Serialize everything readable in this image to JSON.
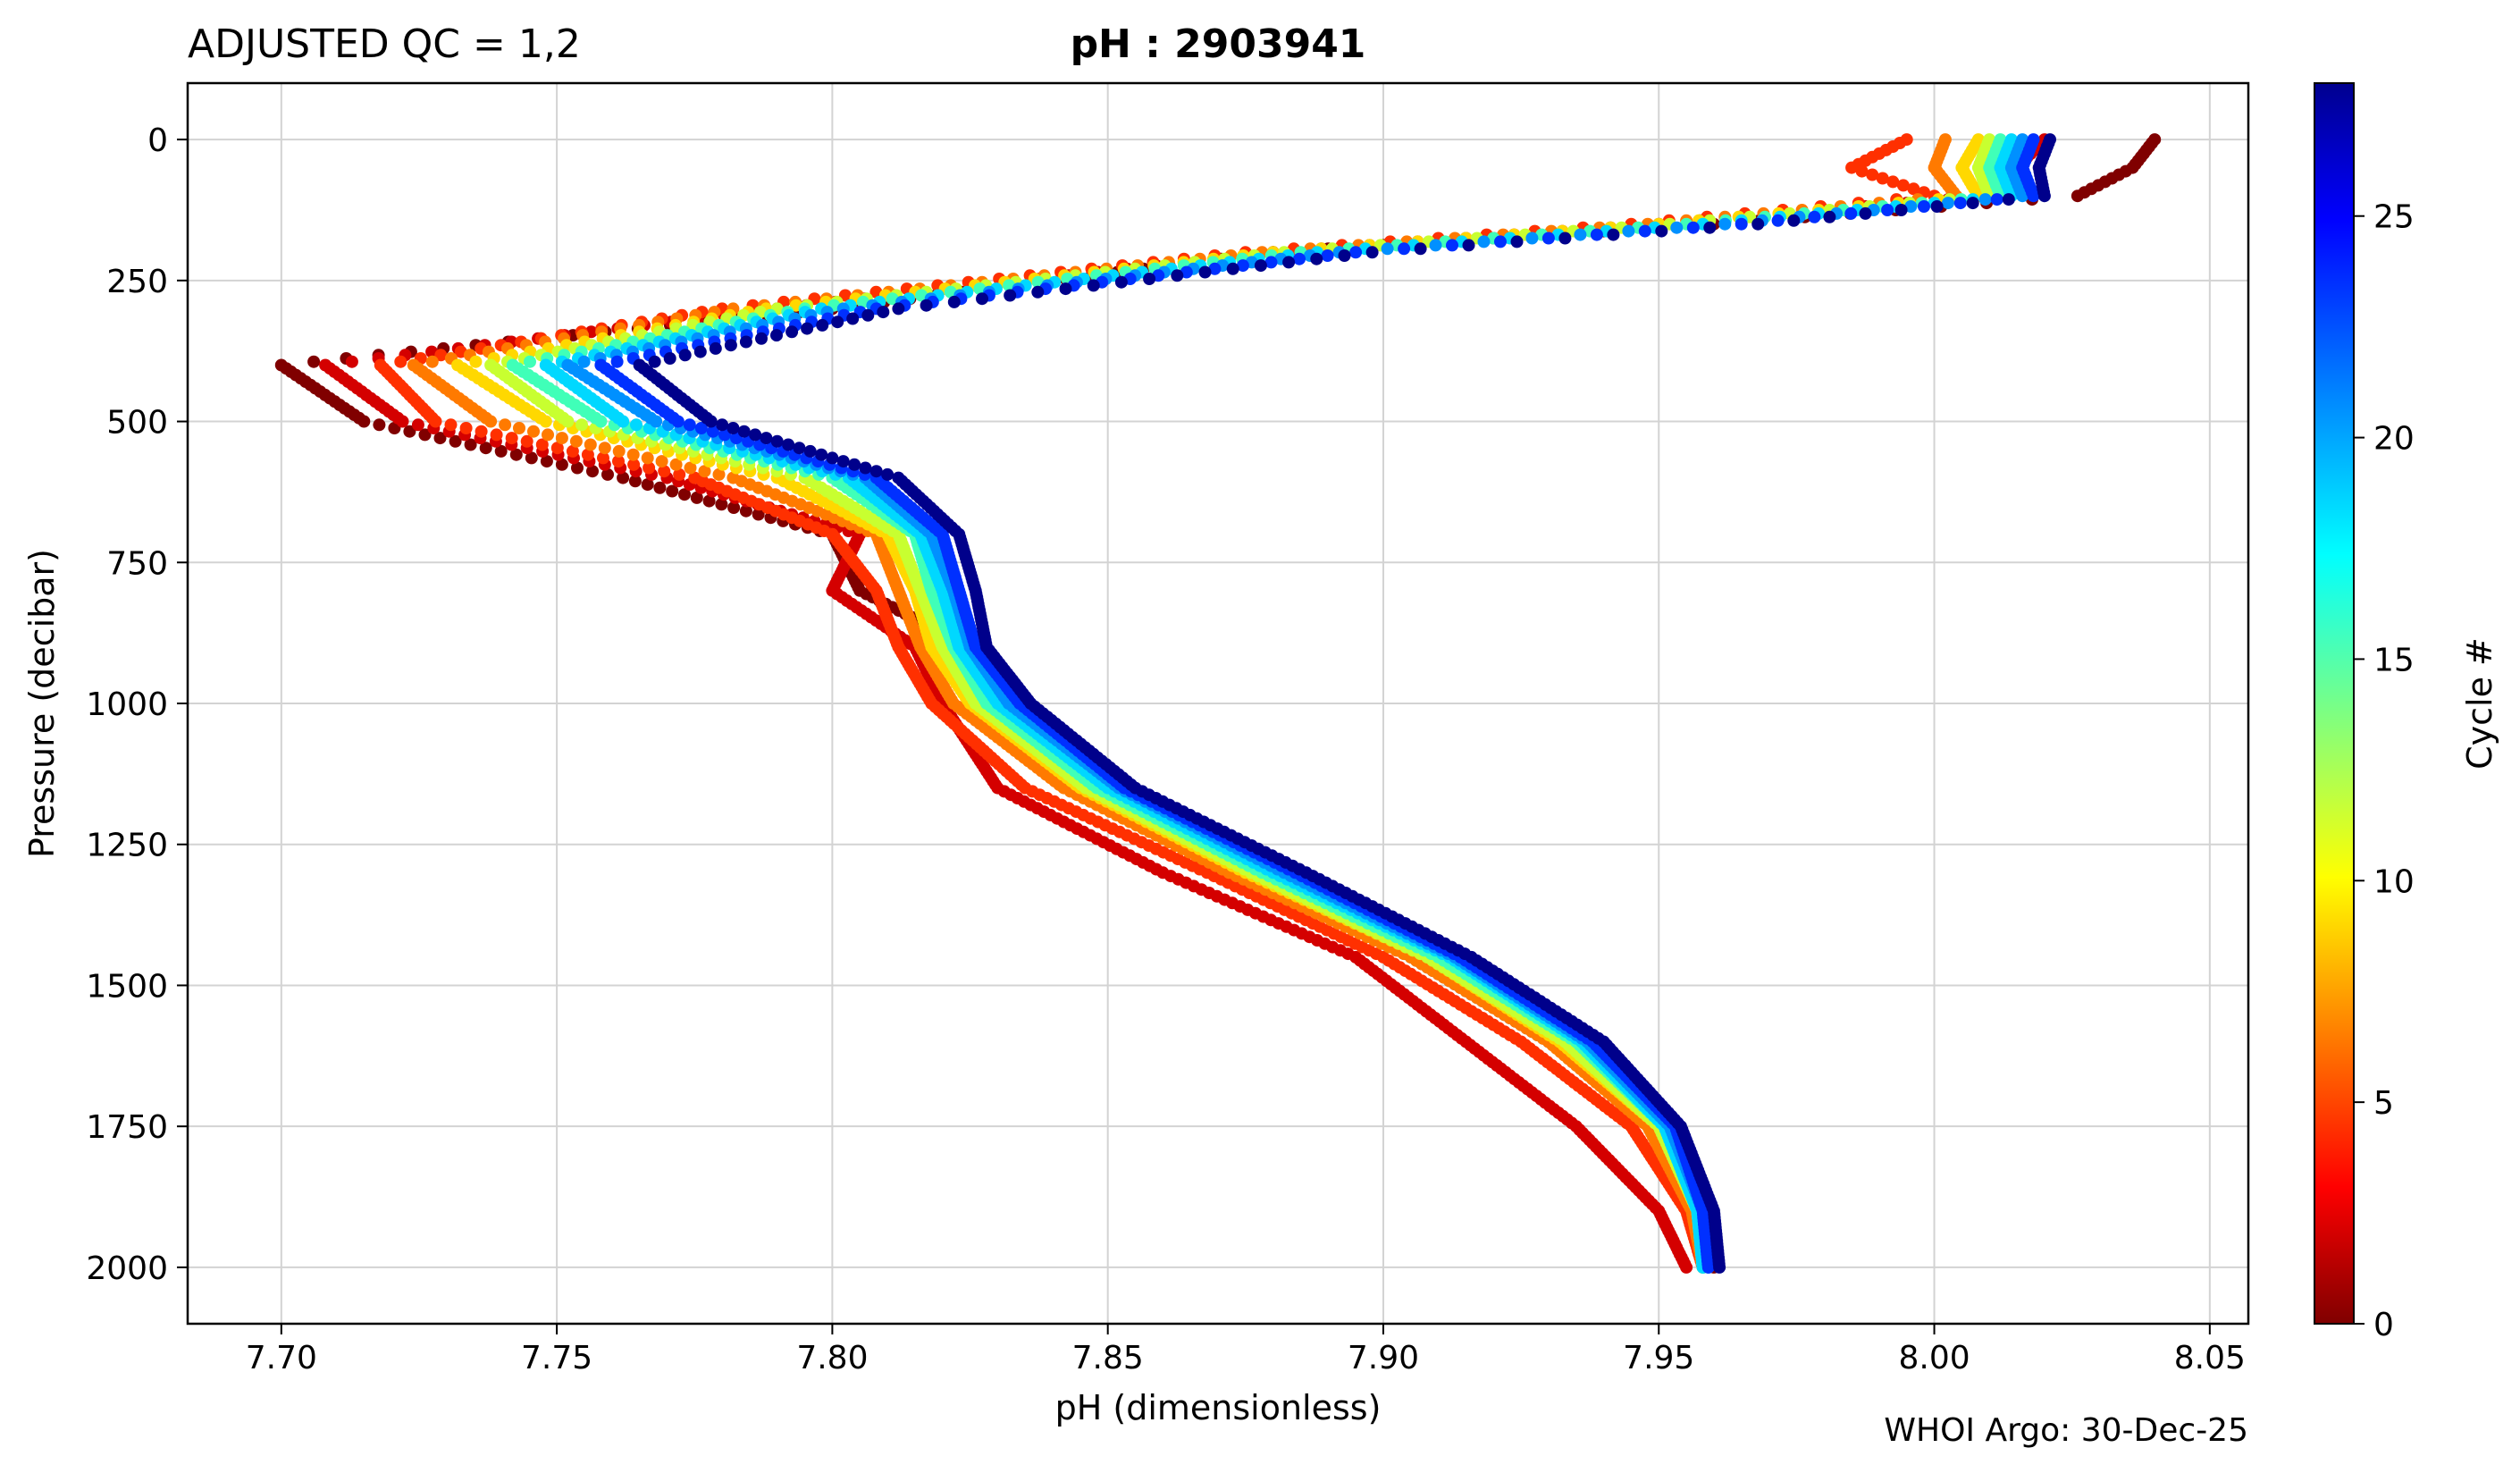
{
  "chart_data": {
    "type": "scatter",
    "title_left": "ADJUSTED QC = 1,2",
    "title_center": "pH : 2903941",
    "xlabel": "pH  (dimensionless)",
    "ylabel": "Pressure  (decibar)",
    "xlim": [
      7.683,
      8.057
    ],
    "ylim": [
      2100,
      -100
    ],
    "x_ticks": [
      7.7,
      7.75,
      7.8,
      7.85,
      7.9,
      7.95,
      8.0,
      8.05
    ],
    "x_tick_labels": [
      "7.70",
      "7.75",
      "7.80",
      "7.85",
      "7.90",
      "7.95",
      "8.00",
      "8.05"
    ],
    "y_ticks": [
      0,
      250,
      500,
      750,
      1000,
      1250,
      1500,
      1750,
      2000
    ],
    "y_tick_labels": [
      "0",
      "250",
      "500",
      "750",
      "1000",
      "1250",
      "1500",
      "1750",
      "2000"
    ],
    "grid": true,
    "colorbar": {
      "label": "Cycle #",
      "min": 0,
      "max": 28,
      "colormap": "jet",
      "ticks": [
        0,
        5,
        10,
        15,
        20,
        25
      ],
      "tick_labels": [
        "0",
        "5",
        "10",
        "15",
        "20",
        "25"
      ]
    },
    "series": [
      {
        "name": "cycle 0",
        "cycle": 0,
        "color": "#800000",
        "pressure": [
          0,
          50,
          100,
          150,
          200,
          300,
          400,
          500,
          600,
          700,
          800,
          900,
          1000,
          1150,
          1300,
          1450,
          1600,
          1750,
          1900,
          2000
        ],
        "ph": [
          8.04,
          8.036,
          8.026,
          7.96,
          7.88,
          7.8,
          7.7,
          7.715,
          7.762,
          7.8,
          7.805,
          7.825,
          7.83,
          7.845,
          7.875,
          7.905,
          7.93,
          7.95,
          7.958,
          7.96
        ]
      },
      {
        "name": "cycle 2",
        "cycle": 2,
        "color": "#d40000",
        "pressure": [
          0,
          50,
          100,
          150,
          200,
          300,
          400,
          500,
          600,
          700,
          800,
          900,
          1000,
          1150,
          1300,
          1450,
          1600,
          1750,
          1900,
          2000
        ],
        "ph": [
          8.02,
          8.015,
          8.01,
          7.95,
          7.88,
          7.79,
          7.708,
          7.722,
          7.77,
          7.805,
          7.8,
          7.815,
          7.82,
          7.83,
          7.86,
          7.895,
          7.915,
          7.935,
          7.95,
          7.955
        ]
      },
      {
        "name": "cycle 4",
        "cycle": 4,
        "color": "#ff3000",
        "pressure": [
          0,
          50,
          100,
          150,
          200,
          300,
          400,
          500,
          600,
          700,
          800,
          900,
          1000,
          1150,
          1300,
          1450,
          1600,
          1750,
          1900,
          2000
        ],
        "ph": [
          7.995,
          7.985,
          8.0,
          7.945,
          7.875,
          7.78,
          7.718,
          7.728,
          7.775,
          7.8,
          7.808,
          7.812,
          7.818,
          7.835,
          7.868,
          7.9,
          7.925,
          7.945,
          7.955,
          7.958
        ]
      },
      {
        "name": "cycle 6",
        "cycle": 6,
        "color": "#ff7a00",
        "pressure": [
          0,
          50,
          100,
          150,
          200,
          300,
          400,
          500,
          600,
          700,
          800,
          900,
          1000,
          1150,
          1300,
          1450,
          1600,
          1750,
          1900,
          2000
        ],
        "ph": [
          8.002,
          8.0,
          8.004,
          7.948,
          7.878,
          7.782,
          7.724,
          7.738,
          7.782,
          7.808,
          7.812,
          7.816,
          7.822,
          7.842,
          7.872,
          7.905,
          7.93,
          7.948,
          7.956,
          7.958
        ]
      },
      {
        "name": "cycle 9",
        "cycle": 9,
        "color": "#ffd800",
        "pressure": [
          0,
          50,
          100,
          150,
          200,
          300,
          400,
          500,
          600,
          700,
          800,
          900,
          1000,
          1150,
          1300,
          1450,
          1600,
          1750,
          1900,
          2000
        ],
        "ph": [
          8.008,
          8.005,
          8.008,
          7.95,
          7.88,
          7.788,
          7.732,
          7.748,
          7.79,
          7.81,
          7.815,
          7.818,
          7.825,
          7.845,
          7.875,
          7.908,
          7.932,
          7.95,
          7.957,
          7.958
        ]
      },
      {
        "name": "cycle 12",
        "cycle": 12,
        "color": "#c8ff30",
        "pressure": [
          0,
          50,
          100,
          150,
          200,
          300,
          400,
          500,
          600,
          700,
          800,
          900,
          1000,
          1150,
          1300,
          1450,
          1600,
          1750,
          1900,
          2000
        ],
        "ph": [
          8.01,
          8.008,
          8.01,
          7.952,
          7.882,
          7.79,
          7.738,
          7.752,
          7.795,
          7.812,
          7.816,
          7.82,
          7.826,
          7.846,
          7.876,
          7.908,
          7.933,
          7.95,
          7.957,
          7.958
        ]
      },
      {
        "name": "cycle 15",
        "cycle": 15,
        "color": "#40ffb8",
        "pressure": [
          0,
          50,
          100,
          150,
          200,
          300,
          400,
          500,
          600,
          700,
          800,
          900,
          1000,
          1150,
          1300,
          1450,
          1600,
          1750,
          1900,
          2000
        ],
        "ph": [
          8.012,
          8.01,
          8.012,
          7.955,
          7.885,
          7.795,
          7.742,
          7.758,
          7.8,
          7.815,
          7.818,
          7.822,
          7.828,
          7.848,
          7.878,
          7.91,
          7.935,
          7.951,
          7.957,
          7.958
        ]
      },
      {
        "name": "cycle 18",
        "cycle": 18,
        "color": "#00d8ff",
        "pressure": [
          0,
          50,
          100,
          150,
          200,
          300,
          400,
          500,
          600,
          700,
          800,
          900,
          1000,
          1150,
          1300,
          1450,
          1600,
          1750,
          1900,
          2000
        ],
        "ph": [
          8.014,
          8.012,
          8.014,
          7.958,
          7.888,
          7.798,
          7.748,
          7.762,
          7.803,
          7.816,
          7.82,
          7.823,
          7.83,
          7.85,
          7.88,
          7.912,
          7.936,
          7.951,
          7.957,
          7.958
        ]
      },
      {
        "name": "cycle 21",
        "cycle": 21,
        "color": "#0090ff",
        "pressure": [
          0,
          50,
          100,
          150,
          200,
          300,
          400,
          500,
          600,
          700,
          800,
          900,
          1000,
          1150,
          1300,
          1450,
          1600,
          1750,
          1900,
          2000
        ],
        "ph": [
          8.016,
          8.014,
          8.016,
          7.962,
          7.892,
          7.802,
          7.752,
          7.768,
          7.806,
          7.818,
          7.822,
          7.825,
          7.832,
          7.852,
          7.882,
          7.913,
          7.937,
          7.952,
          7.958,
          7.959
        ]
      },
      {
        "name": "cycle 24",
        "cycle": 24,
        "color": "#0030ff",
        "pressure": [
          0,
          50,
          100,
          150,
          200,
          300,
          400,
          500,
          600,
          700,
          800,
          900,
          1000,
          1150,
          1300,
          1450,
          1600,
          1750,
          1900,
          2000
        ],
        "ph": [
          8.018,
          8.016,
          8.018,
          7.965,
          7.895,
          7.808,
          7.758,
          7.772,
          7.808,
          7.82,
          7.823,
          7.826,
          7.834,
          7.853,
          7.884,
          7.914,
          7.938,
          7.953,
          7.958,
          7.959
        ]
      },
      {
        "name": "cycle 27",
        "cycle": 27,
        "color": "#00008b",
        "pressure": [
          0,
          50,
          100,
          150,
          200,
          300,
          400,
          500,
          600,
          700,
          800,
          900,
          1000,
          1150,
          1300,
          1450,
          1600,
          1750,
          1900,
          2000
        ],
        "ph": [
          8.021,
          8.019,
          8.02,
          7.968,
          7.898,
          7.812,
          7.765,
          7.778,
          7.812,
          7.823,
          7.826,
          7.828,
          7.836,
          7.855,
          7.886,
          7.916,
          7.94,
          7.954,
          7.96,
          7.961
        ]
      }
    ],
    "footer": "WHOI Argo: 30-Dec-25"
  }
}
